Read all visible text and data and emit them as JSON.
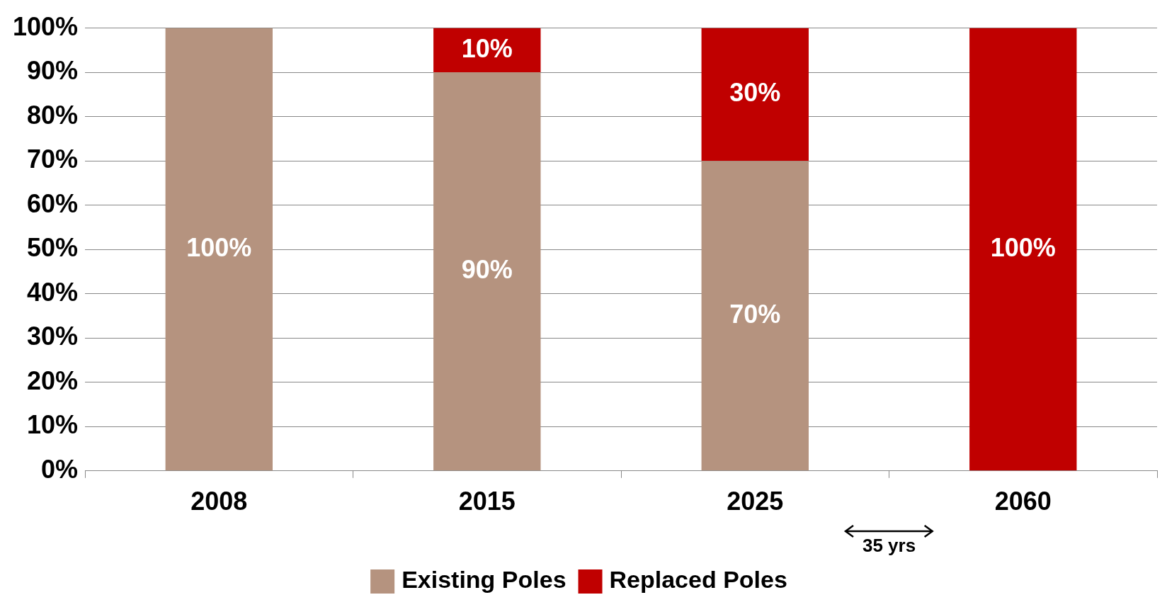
{
  "chart_data": {
    "type": "bar",
    "stacked": true,
    "categories": [
      "2008",
      "2015",
      "2025",
      "2060"
    ],
    "series": [
      {
        "name": "Existing Poles",
        "color": "#b5937f",
        "values": [
          100,
          90,
          70,
          0
        ],
        "value_labels": [
          "100%",
          "90%",
          "70%",
          null
        ]
      },
      {
        "name": "Replaced Poles",
        "color": "#c00000",
        "values": [
          0,
          10,
          30,
          100
        ],
        "value_labels": [
          null,
          "10%",
          "30%",
          "100%"
        ]
      }
    ],
    "ylim": [
      0,
      100
    ],
    "yticks": [
      {
        "value": 0,
        "label": "0%"
      },
      {
        "value": 10,
        "label": "10%"
      },
      {
        "value": 20,
        "label": "20%"
      },
      {
        "value": 30,
        "label": "30%"
      },
      {
        "value": 40,
        "label": "40%"
      },
      {
        "value": 50,
        "label": "50%"
      },
      {
        "value": 60,
        "label": "60%"
      },
      {
        "value": 70,
        "label": "70%"
      },
      {
        "value": 80,
        "label": "80%"
      },
      {
        "value": 90,
        "label": "90%"
      },
      {
        "value": 100,
        "label": "100%"
      }
    ],
    "grid": "y",
    "legend": "bottom",
    "annotations": [
      "35 yrs"
    ]
  }
}
